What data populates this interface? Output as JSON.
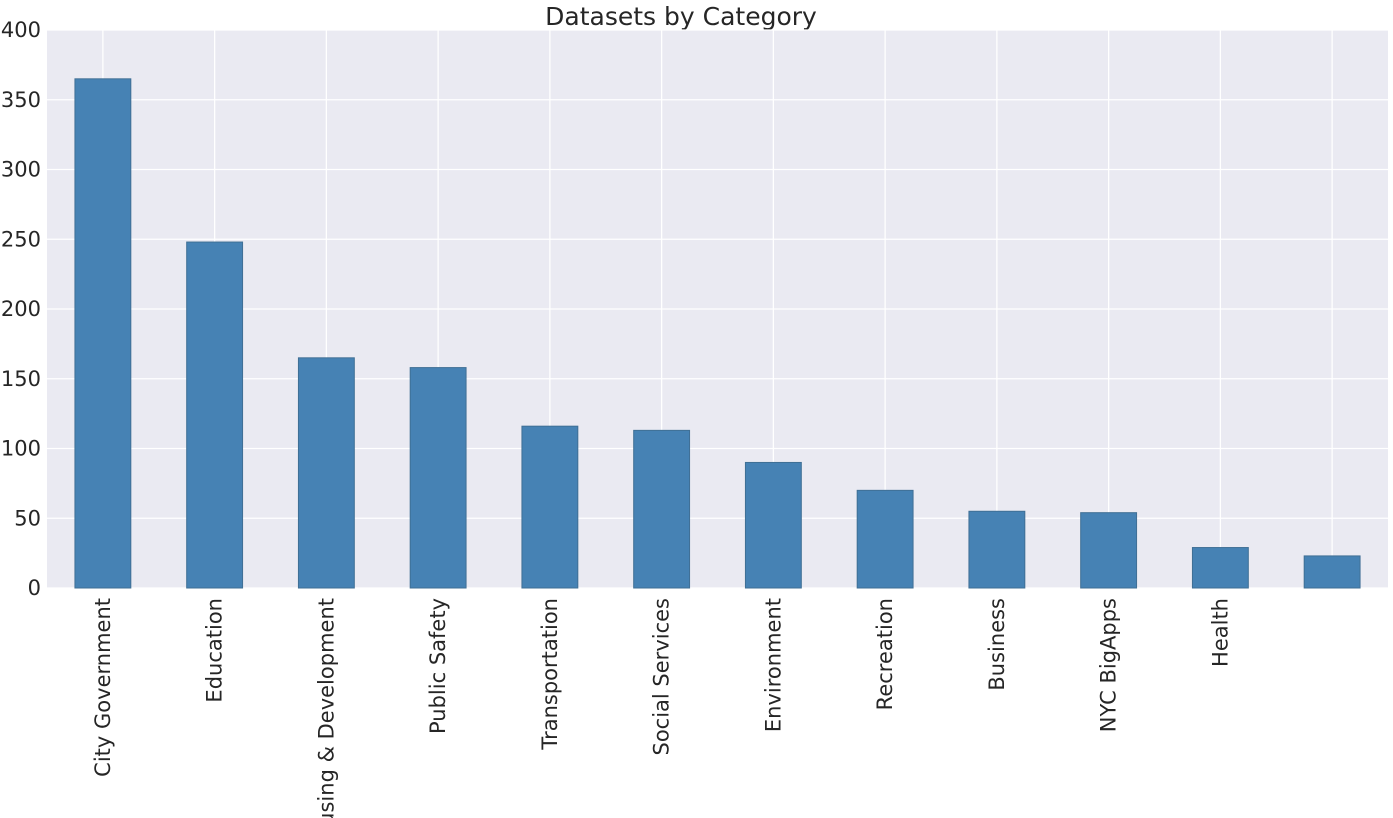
{
  "chart_data": {
    "type": "bar",
    "title": "Datasets by Category",
    "xlabel": "",
    "ylabel": "",
    "categories": [
      "City Government",
      "Education",
      "Housing & Development",
      "Public Safety",
      "Transportation",
      "Social Services",
      "Environment",
      "Recreation",
      "Business",
      "NYC BigApps",
      "Health",
      ""
    ],
    "values": [
      365,
      248,
      165,
      158,
      116,
      113,
      90,
      70,
      55,
      54,
      29,
      23
    ],
    "ylim": [
      0,
      400
    ],
    "yticks": [
      0,
      50,
      100,
      150,
      200,
      250,
      300,
      350,
      400
    ],
    "grid": true,
    "legend": "none",
    "colors": {
      "bar": "#4682b4",
      "bar_edge": "#3f6f95",
      "plot_background": "#eaeaf2",
      "grid": "#ffffff",
      "text": "#262626"
    }
  }
}
